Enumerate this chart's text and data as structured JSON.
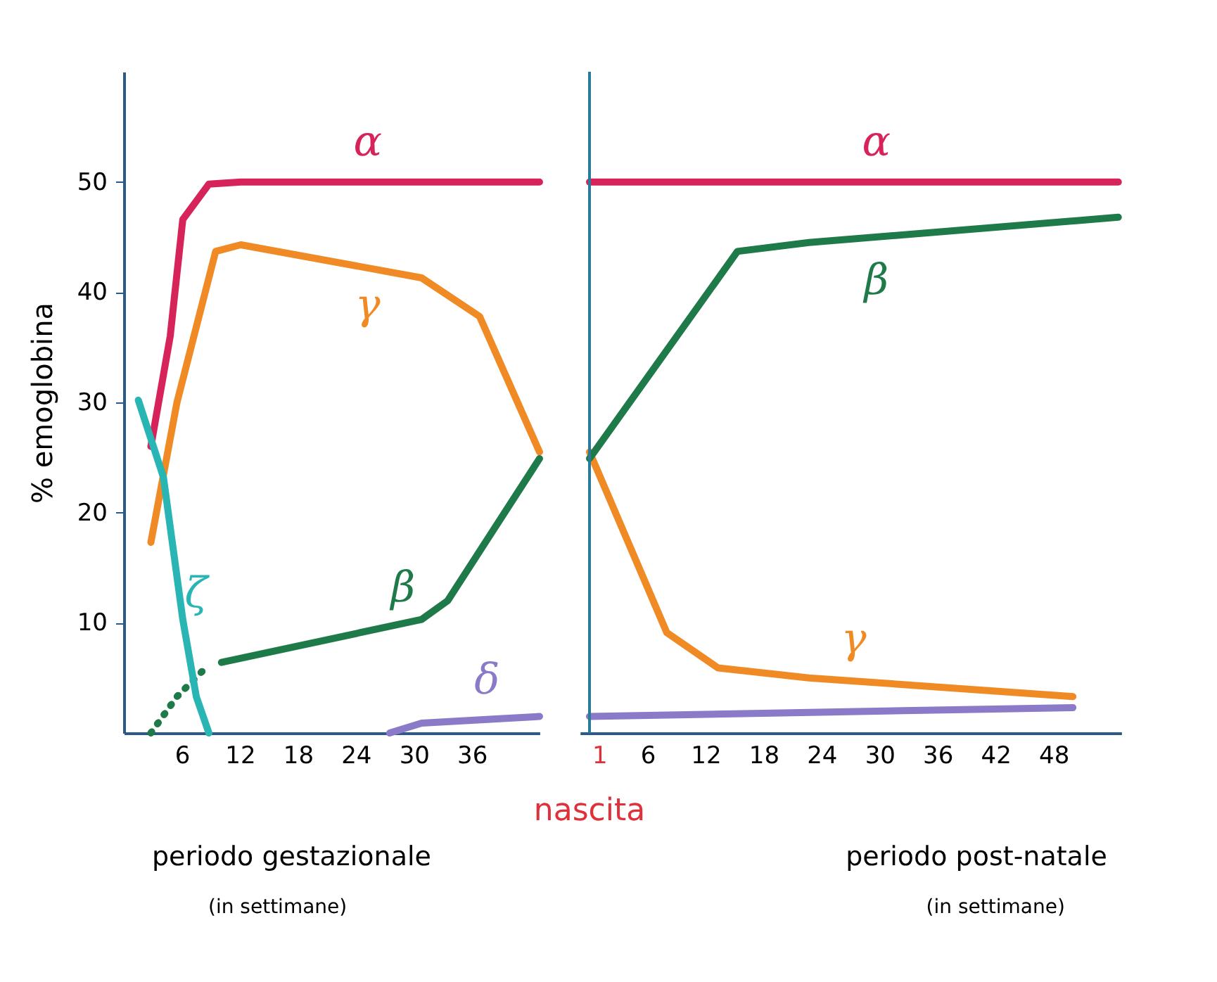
{
  "chart_data": [
    {
      "type": "line",
      "ylabel": "% emoglobina",
      "xlim": [
        0,
        43
      ],
      "ylim": [
        0,
        60
      ],
      "xticks": [
        6,
        12,
        18,
        24,
        30,
        36
      ],
      "yticks": [
        10,
        20,
        30,
        40,
        50
      ],
      "grid": false,
      "legend": false,
      "line_style": "solid",
      "marker": "none",
      "series": [
        {
          "name": "α",
          "color": "#d6245a",
          "x": [
            2.8,
            4.8,
            6.1,
            8.8,
            12.1,
            43
          ],
          "values": [
            26,
            36,
            46.6,
            49.8,
            50,
            50
          ]
        },
        {
          "name": "γ",
          "color": "#f08a24",
          "x": [
            2.8,
            5.5,
            9.5,
            12.1,
            30.8,
            36.8,
            43
          ],
          "values": [
            17.3,
            30,
            43.7,
            44.3,
            41.3,
            37.8,
            25.5
          ]
        },
        {
          "name": "β",
          "color": "#1f7a4a",
          "x": [
            10.1,
            30.8,
            33.5,
            43
          ],
          "values": [
            6.4,
            10.3,
            12,
            24.9
          ]
        },
        {
          "color": "#1f7a4a",
          "line_style": "dotted",
          "x": [
            2.8,
            5.5,
            8.8
          ],
          "values": [
            0,
            3.3,
            6.2
          ]
        },
        {
          "name": "ζ",
          "color": "#2ab5b5",
          "x": [
            1.5,
            4.1,
            6.1,
            7.5,
            8.8
          ],
          "values": [
            30.2,
            23.2,
            10.3,
            3.3,
            0
          ]
        },
        {
          "name": "δ",
          "color": "#8a7ac8",
          "x": [
            27.5,
            30.8,
            43
          ],
          "values": [
            0,
            0.9,
            1.5
          ]
        }
      ],
      "annotations": [
        "periodo gestazionale",
        "(in settimane)"
      ]
    },
    {
      "type": "line",
      "xlim": [
        -1,
        55
      ],
      "ylim": [
        0,
        60
      ],
      "xticks": [
        1,
        6,
        12,
        18,
        24,
        30,
        36,
        42,
        48
      ],
      "yticks": [
        10,
        20,
        30,
        40,
        50
      ],
      "tick_labels": "x",
      "grid": false,
      "legend": false,
      "line_style": "solid",
      "marker": "none",
      "series": [
        {
          "name": "α",
          "color": "#d6245a",
          "x": [
            0,
            54.7
          ],
          "values": [
            50,
            50
          ]
        },
        {
          "name": "γ",
          "color": "#f08a24",
          "x": [
            0,
            8,
            13.3,
            22.7,
            50
          ],
          "values": [
            25.5,
            9.1,
            5.9,
            5,
            3.3
          ]
        },
        {
          "name": "β",
          "color": "#1f7a4a",
          "x": [
            0,
            15.3,
            22.7,
            54.7
          ],
          "values": [
            24.9,
            43.7,
            44.5,
            46.8
          ]
        },
        {
          "color": "#8a7ac8",
          "x": [
            0,
            50
          ],
          "values": [
            1.5,
            2.3
          ]
        }
      ],
      "ref_lines": [
        {
          "axis": "x",
          "value": 0,
          "label": "nascita",
          "color": "#2a7a9a"
        }
      ],
      "annotations": [
        "periodo post-natale",
        "(in settimane)"
      ]
    }
  ]
}
